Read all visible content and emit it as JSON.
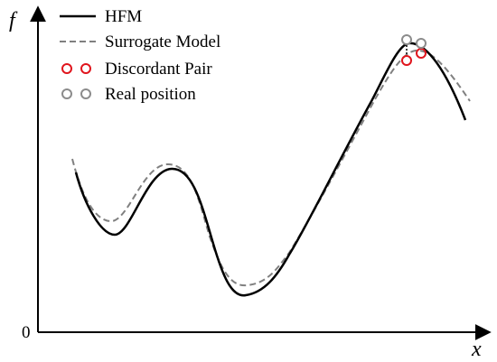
{
  "figure": {
    "y_axis_letter": "f",
    "x_axis_letter": "x",
    "origin_label": "0",
    "colors": {
      "hfm": "#000000",
      "surrogate": "#808080",
      "discordant": "#e0151d",
      "real": "#8c8c8c"
    },
    "legend": {
      "items": [
        {
          "label": "HFM",
          "marker": "solid-line"
        },
        {
          "label": "Surrogate Model",
          "marker": "dashed-line"
        },
        {
          "label": "Discordant Pair",
          "marker": "red-circles"
        },
        {
          "label": "Real position",
          "marker": "gray-circles"
        }
      ]
    }
  }
}
